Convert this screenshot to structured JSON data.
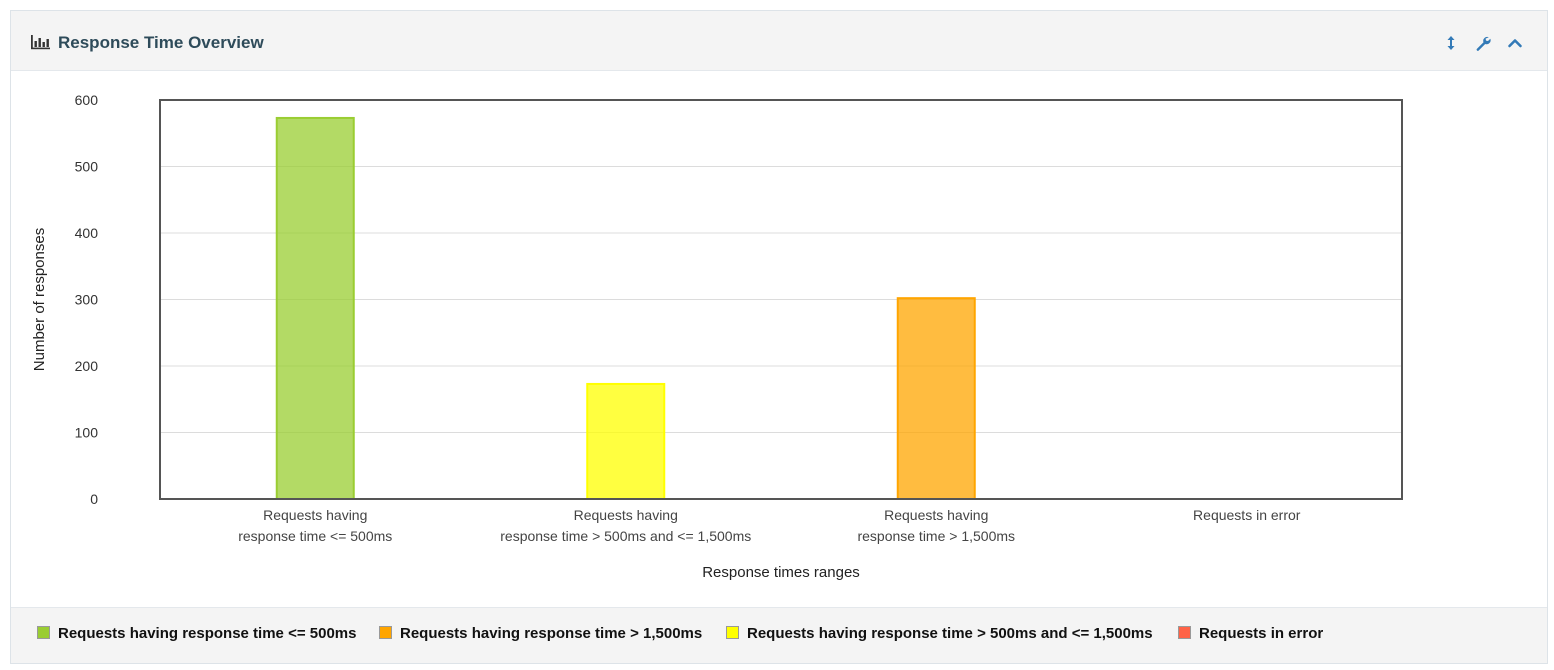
{
  "panel": {
    "title": "Response Time Overview",
    "title_icon": "bar-chart-icon",
    "actions": [
      {
        "name": "resize-icon"
      },
      {
        "name": "wrench-icon"
      },
      {
        "name": "chevron-up-icon"
      }
    ]
  },
  "colors": {
    "accent": "#337ab7",
    "title": "#2e4b5a"
  },
  "chart_data": {
    "type": "bar",
    "categories": [
      [
        "Requests having",
        "response time <= 500ms"
      ],
      [
        "Requests having",
        "response time > 500ms and <= 1,500ms"
      ],
      [
        "Requests having",
        "response time > 1,500ms"
      ],
      [
        "Requests in error"
      ]
    ],
    "values": [
      573,
      173,
      302,
      0
    ],
    "bar_colors": [
      "#9acd32",
      "#ffff00",
      "#ffa500",
      "#ff6347"
    ],
    "xlabel": "Response times ranges",
    "ylabel": "Number of responses",
    "ylim": [
      0,
      600
    ],
    "yticks": [
      "0",
      "100",
      "200",
      "300",
      "400",
      "500",
      "600"
    ],
    "grid": true
  },
  "legend": [
    {
      "label": "Requests having response time <= 500ms",
      "color": "#9acd32"
    },
    {
      "label": "Requests having response time > 1,500ms",
      "color": "#ffa500"
    },
    {
      "label": "Requests having response time > 500ms and <= 1,500ms",
      "color": "#ffff00"
    },
    {
      "label": "Requests in error",
      "color": "#ff6347"
    }
  ]
}
